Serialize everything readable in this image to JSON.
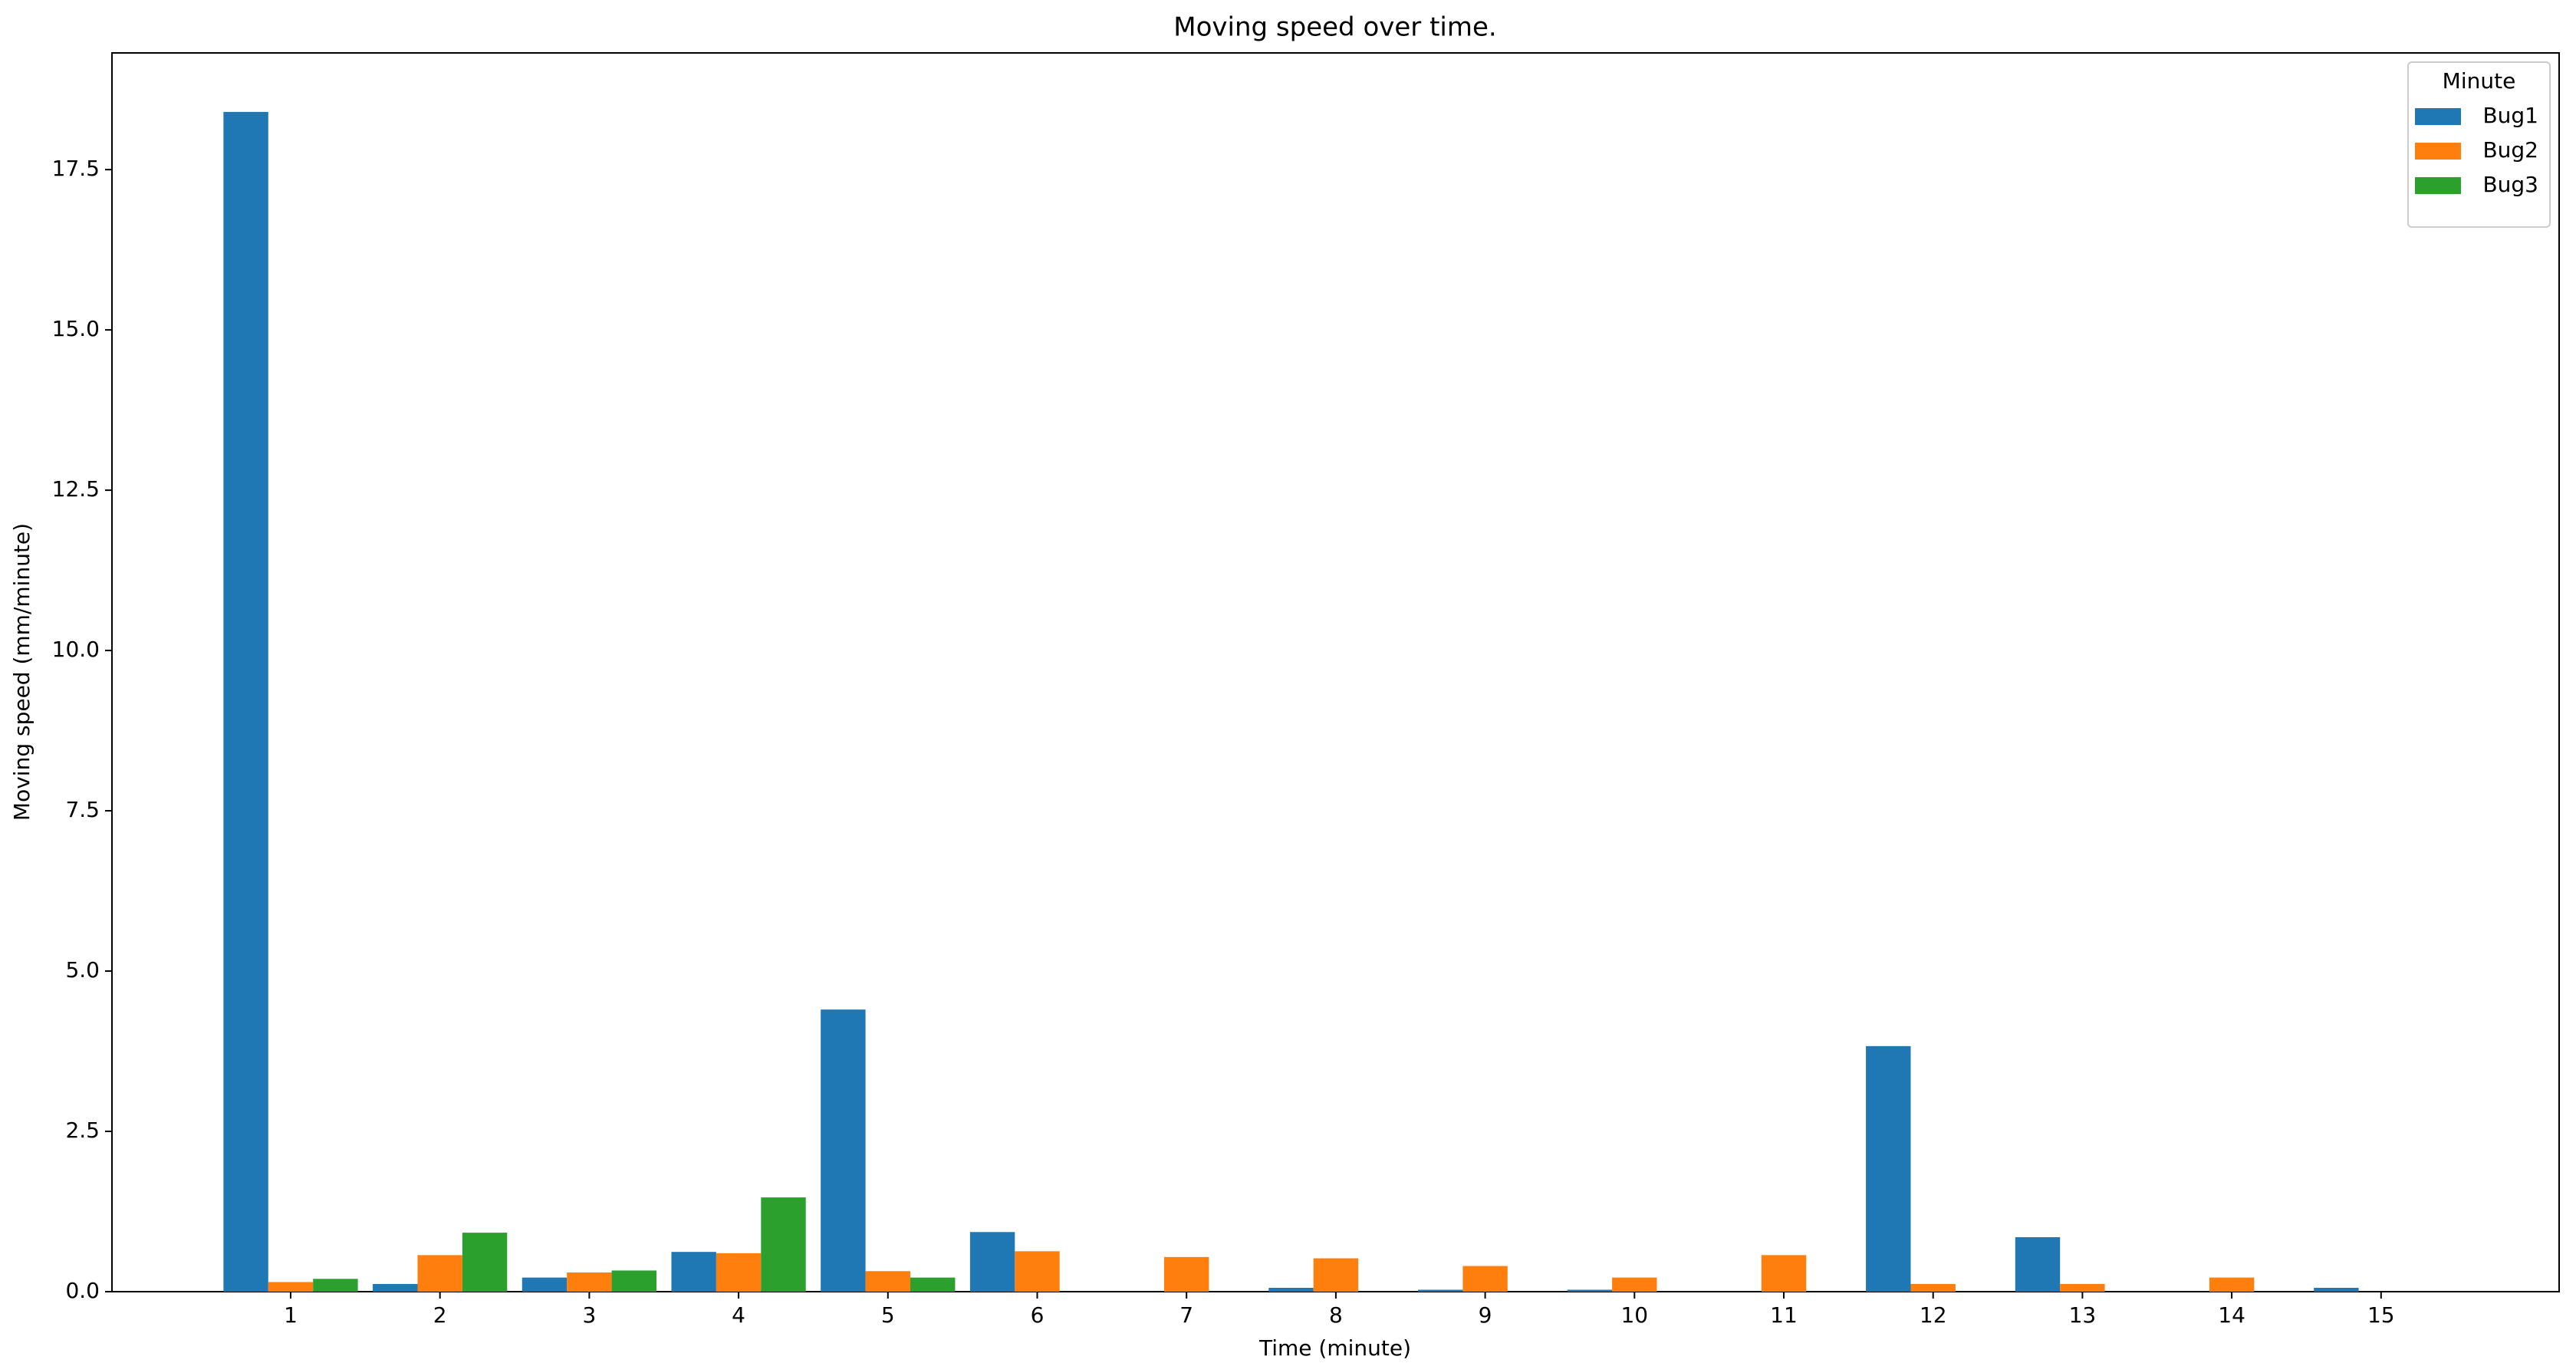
{
  "chart_data": {
    "type": "bar",
    "title": "Moving speed over time.",
    "x_label": "Time (minute)",
    "y_label": "Moving speed (mm/minute)",
    "categories": [
      "1",
      "2",
      "3",
      "4",
      "5",
      "6",
      "7",
      "8",
      "9",
      "10",
      "11",
      "12",
      "13",
      "14",
      "15"
    ],
    "series": [
      {
        "name": "Bug1",
        "color": "#1f77b4",
        "values": [
          18.4,
          0.12,
          0.22,
          0.62,
          4.4,
          0.93,
          null,
          0.06,
          0.03,
          0.03,
          null,
          3.83,
          0.85,
          null,
          0.06
        ]
      },
      {
        "name": "Bug2",
        "color": "#ff7f0e",
        "values": [
          0.15,
          0.57,
          0.3,
          0.6,
          0.32,
          0.63,
          0.54,
          0.52,
          0.4,
          0.22,
          0.57,
          0.12,
          0.12,
          0.22,
          null
        ]
      },
      {
        "name": "Bug3",
        "color": "#2ca02c",
        "values": [
          0.2,
          0.92,
          0.33,
          1.47,
          0.22,
          null,
          null,
          null,
          null,
          null,
          null,
          null,
          null,
          null,
          null
        ]
      }
    ],
    "ylim": [
      0,
      19.32
    ],
    "yticks": [
      {
        "value": 0,
        "label": "0.0"
      },
      {
        "value": 2.5,
        "label": "2.5"
      },
      {
        "value": 5,
        "label": "5.0"
      },
      {
        "value": 7.5,
        "label": "7.5"
      },
      {
        "value": 10,
        "label": "10.0"
      },
      {
        "value": 12.5,
        "label": "12.5"
      },
      {
        "value": 15,
        "label": "15.0"
      },
      {
        "value": 17.5,
        "label": "17.5"
      }
    ],
    "legend_title": "Minute",
    "legend_position": "upper right",
    "grid": false
  }
}
